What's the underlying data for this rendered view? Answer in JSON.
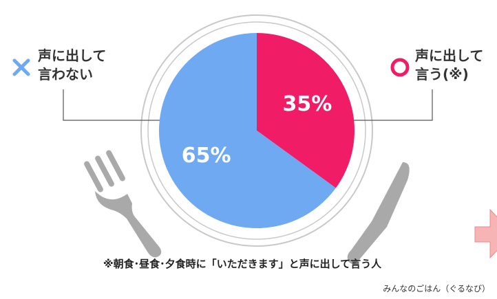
{
  "chart_data": {
    "type": "pie",
    "categories": [
      "声に出して\n言わない",
      "声に出して\n言う(※)"
    ],
    "values": [
      65,
      35
    ],
    "value_labels": [
      "65%",
      "35%"
    ],
    "colors": [
      "#6ea9f1",
      "#f01c66"
    ],
    "footnote": "※朝食･昼食･夕食時に「いただきます」と声に出して言う人",
    "source": "みんなのごはん（ぐるなび）"
  }
}
